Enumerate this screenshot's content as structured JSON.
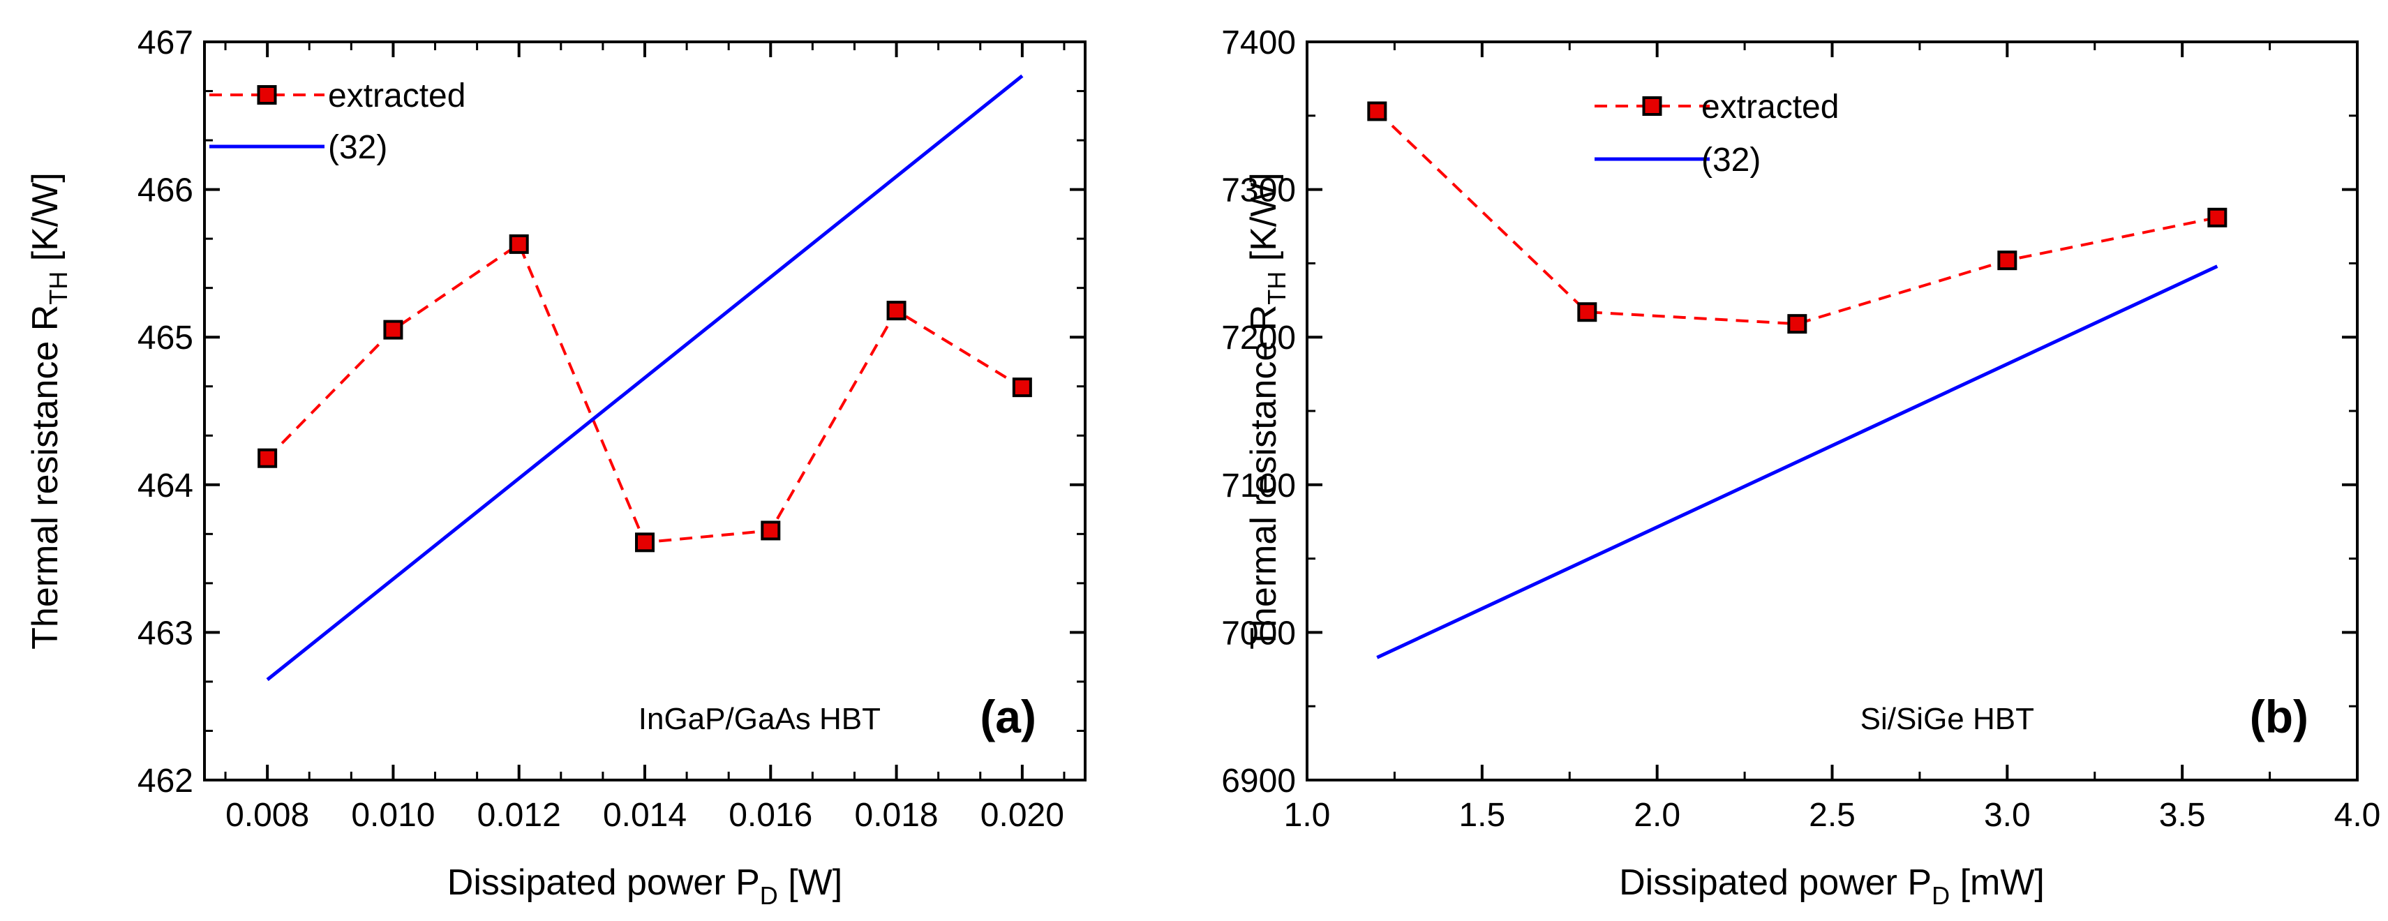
{
  "colors": {
    "extracted": "#ff0000",
    "marker_fill": "#e60000",
    "marker_edge": "#000000",
    "model": "#0000ff"
  },
  "chart_data": [
    {
      "type": "line",
      "panel": "(a)",
      "annotation": "InGaP/GaAs HBT",
      "xlabel": {
        "main": "Dissipated power P",
        "sub": "D",
        "unit": " [W]"
      },
      "ylabel": {
        "main": "Thermal resistance R",
        "sub": "TH",
        "unit": " [K/W]"
      },
      "xlim": [
        0.007,
        0.021
      ],
      "ylim": [
        462,
        467
      ],
      "xticks": [
        0.008,
        0.01,
        0.012,
        0.014,
        0.016,
        0.018,
        0.02
      ],
      "xtick_labels": [
        "0.008",
        "0.010",
        "0.012",
        "0.014",
        "0.016",
        "0.018",
        "0.020"
      ],
      "yticks": [
        462,
        463,
        464,
        465,
        466,
        467
      ],
      "ytick_labels": [
        "462",
        "463",
        "464",
        "465",
        "466",
        "467"
      ],
      "legend_position": "top-left",
      "series": [
        {
          "name": "extracted",
          "style": "dashed-square",
          "x": [
            0.008,
            0.01,
            0.012,
            0.014,
            0.016,
            0.018,
            0.02
          ],
          "y": [
            464.18,
            465.05,
            465.63,
            463.61,
            463.69,
            465.18,
            464.66
          ]
        },
        {
          "name": "(32)",
          "style": "solid",
          "x": [
            0.008,
            0.02
          ],
          "y": [
            462.68,
            466.77
          ]
        }
      ]
    },
    {
      "type": "line",
      "panel": "(b)",
      "annotation": "Si/SiGe HBT",
      "xlabel": {
        "main": "Dissipated power P",
        "sub": "D",
        "unit": " [mW]"
      },
      "ylabel": {
        "main": "Thermal resistance R",
        "sub": "TH",
        "unit": " [K/W]"
      },
      "xlim": [
        1.0,
        4.0
      ],
      "ylim": [
        6900,
        7400
      ],
      "xticks": [
        1.0,
        1.5,
        2.0,
        2.5,
        3.0,
        3.5,
        4.0
      ],
      "xtick_labels": [
        "1.0",
        "1.5",
        "2.0",
        "2.5",
        "3.0",
        "3.5",
        "4.0"
      ],
      "yticks": [
        6900,
        7000,
        7100,
        7200,
        7300,
        7400
      ],
      "ytick_labels": [
        "6900",
        "7000",
        "7100",
        "7200",
        "7300",
        "7400"
      ],
      "legend_position": "top-left",
      "series": [
        {
          "name": "extracted",
          "style": "dashed-square",
          "x": [
            1.2,
            1.8,
            2.4,
            3.0,
            3.6
          ],
          "y": [
            7353,
            7217,
            7209,
            7252,
            7281
          ]
        },
        {
          "name": "(32)",
          "style": "solid",
          "x": [
            1.2,
            3.6
          ],
          "y": [
            6983,
            7248
          ]
        }
      ]
    }
  ]
}
